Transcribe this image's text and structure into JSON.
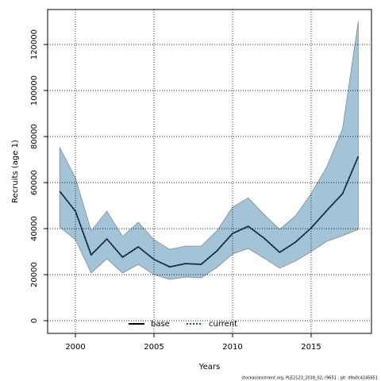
{
  "chart_data": {
    "type": "line",
    "xlabel": "Years",
    "ylabel": "Recruits (age 1)",
    "footer": "stockassessment.org, PLE2123_2018_02, r9651 , git: d9a0c4245651",
    "x": [
      1999,
      2000,
      2001,
      2002,
      2003,
      2004,
      2005,
      2006,
      2007,
      2008,
      2009,
      2010,
      2011,
      2012,
      2013,
      2014,
      2015,
      2016,
      2017,
      2018
    ],
    "series": [
      {
        "name": "base",
        "color": "#000000",
        "style": "solid",
        "values": [
          56200,
          47600,
          28600,
          35500,
          27600,
          32100,
          26600,
          23400,
          24800,
          24500,
          30300,
          37900,
          41000,
          35900,
          29700,
          34100,
          40300,
          47900,
          55200,
          71400
        ]
      },
      {
        "name": "current",
        "color": "#1f4e79",
        "style": "dotted",
        "values": [
          56200,
          47600,
          28600,
          35500,
          27600,
          32100,
          26600,
          23400,
          24800,
          24500,
          30300,
          37900,
          41000,
          35900,
          29700,
          34100,
          40300,
          47900,
          55200,
          71400
        ]
      }
    ],
    "band": {
      "color": "#a3c4d6",
      "upper": [
        75200,
        62100,
        39000,
        47600,
        36600,
        42800,
        35200,
        31000,
        32400,
        32400,
        39000,
        49300,
        53400,
        46200,
        39700,
        45500,
        55200,
        66900,
        83400,
        130000
      ],
      "lower": [
        40700,
        35200,
        20700,
        26900,
        20700,
        24500,
        20000,
        17900,
        19000,
        18600,
        23100,
        29000,
        31400,
        27200,
        22800,
        25900,
        30000,
        34500,
        36900,
        39700
      ]
    },
    "xlim": [
      1998.23,
      2018.84
    ],
    "ylim": [
      -5500,
      135200
    ],
    "xticks": [
      2000,
      2005,
      2010,
      2015
    ],
    "yticks": [
      0,
      20000,
      40000,
      60000,
      80000,
      100000,
      120000
    ],
    "grid": true,
    "legend": "bottom"
  }
}
